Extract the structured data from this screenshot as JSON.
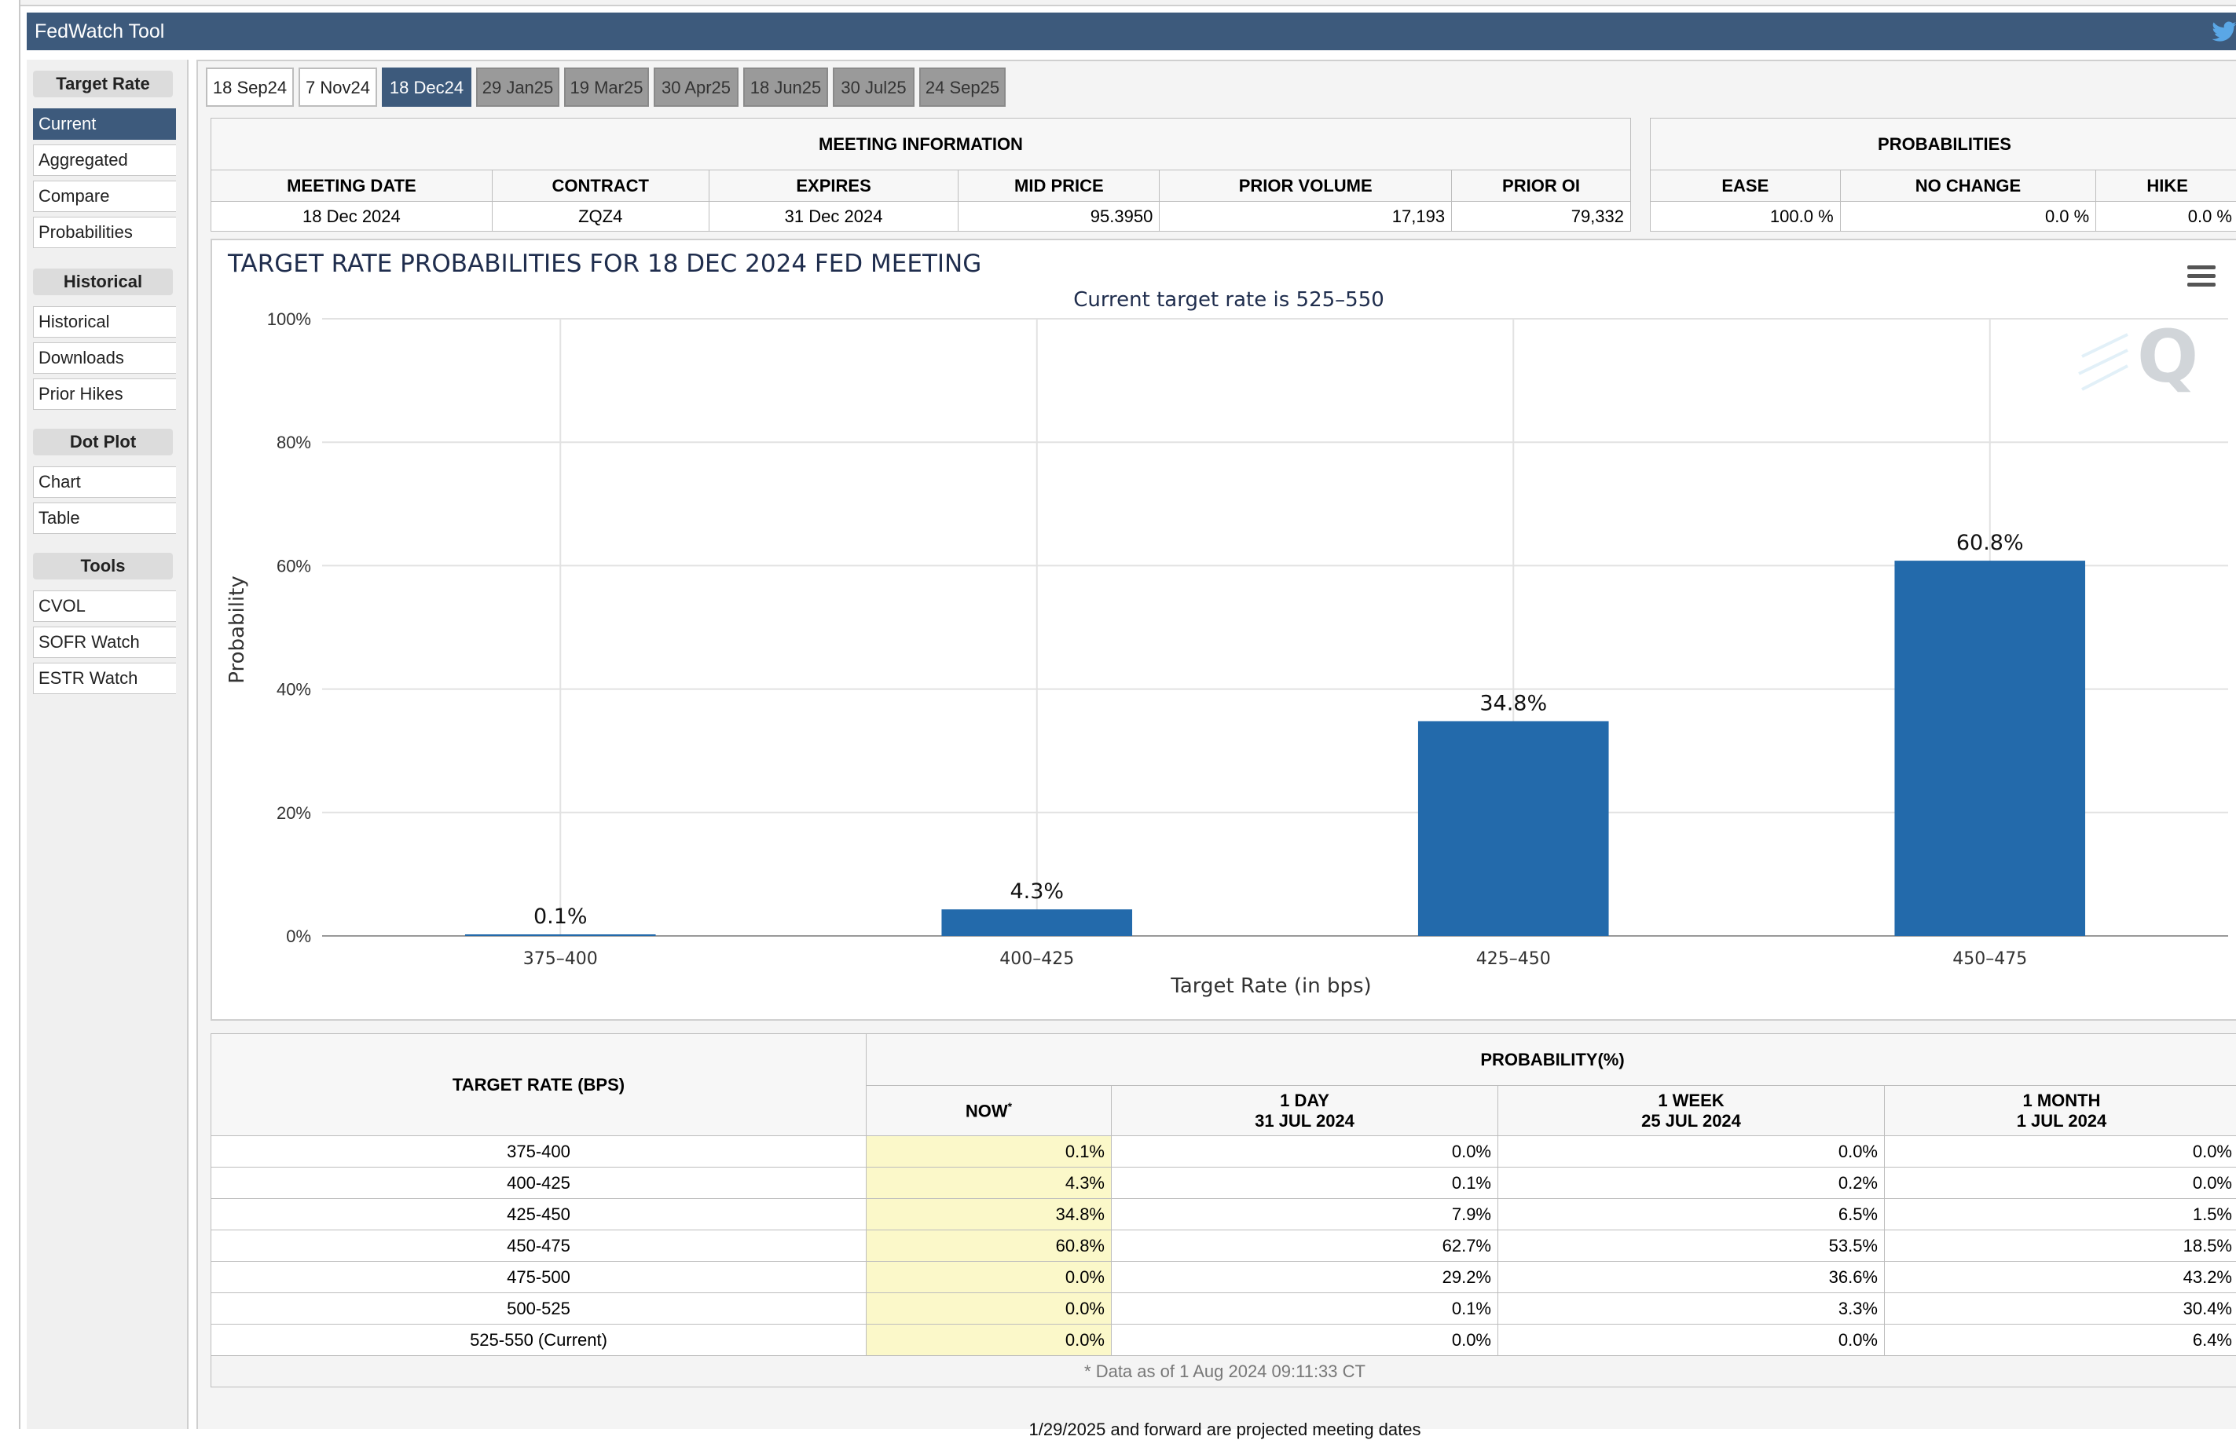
{
  "app": {
    "title": "FedWatch Tool"
  },
  "sidebar": {
    "sections": [
      {
        "heading": "Target Rate",
        "items": [
          "Current",
          "Aggregated",
          "Compare",
          "Probabilities"
        ]
      },
      {
        "heading": "Historical",
        "items": [
          "Historical",
          "Downloads",
          "Prior Hikes"
        ]
      },
      {
        "heading": "Dot Plot",
        "items": [
          "Chart",
          "Table"
        ]
      },
      {
        "heading": "Tools",
        "items": [
          "CVOL",
          "SOFR Watch",
          "ESTR Watch"
        ]
      }
    ],
    "active": "Current"
  },
  "tabs": [
    "18 Sep24",
    "7 Nov24",
    "18 Dec24",
    "29 Jan25",
    "19 Mar25",
    "30 Apr25",
    "18 Jun25",
    "30 Jul25",
    "24 Sep25"
  ],
  "active_tab": "18 Dec24",
  "meeting_info": {
    "title": "MEETING INFORMATION",
    "headers": [
      "MEETING DATE",
      "CONTRACT",
      "EXPIRES",
      "MID PRICE",
      "PRIOR VOLUME",
      "PRIOR OI"
    ],
    "values": [
      "18 Dec 2024",
      "ZQZ4",
      "31 Dec 2024",
      "95.3950",
      "17,193",
      "79,332"
    ]
  },
  "probabilities": {
    "title": "PROBABILITIES",
    "headers": [
      "EASE",
      "NO CHANGE",
      "HIKE"
    ],
    "values": [
      "100.0 %",
      "0.0 %",
      "0.0 %"
    ]
  },
  "chart_data": {
    "type": "bar",
    "title": "TARGET RATE PROBABILITIES FOR 18 DEC 2024 FED MEETING",
    "subtitle": "Current target rate is 525–550",
    "xlabel": "Target Rate (in bps)",
    "ylabel": "Probability",
    "categories": [
      "375–400",
      "400–425",
      "425–450",
      "450–475"
    ],
    "values": [
      0.1,
      4.3,
      34.8,
      60.8
    ],
    "data_labels": [
      "0.1%",
      "4.3%",
      "34.8%",
      "60.8%"
    ],
    "ylim": [
      0,
      100
    ],
    "y_ticks": [
      "0%",
      "20%",
      "40%",
      "60%",
      "80%",
      "100%"
    ],
    "grid": true,
    "bar_color": "#236aab"
  },
  "prob_table": {
    "col_target": "TARGET RATE (BPS)",
    "col_group": "PROBABILITY(%)",
    "col_now": "NOW",
    "now_marker": "*",
    "cols": [
      {
        "line1": "1 DAY",
        "line2": "31 JUL 2024"
      },
      {
        "line1": "1 WEEK",
        "line2": "25 JUL 2024"
      },
      {
        "line1": "1 MONTH",
        "line2": "1 JUL 2024"
      }
    ],
    "rows": [
      {
        "rate": "375-400",
        "now": "0.1%",
        "d1": "0.0%",
        "w1": "0.0%",
        "m1": "0.0%"
      },
      {
        "rate": "400-425",
        "now": "4.3%",
        "d1": "0.1%",
        "w1": "0.2%",
        "m1": "0.0%"
      },
      {
        "rate": "425-450",
        "now": "34.8%",
        "d1": "7.9%",
        "w1": "6.5%",
        "m1": "1.5%"
      },
      {
        "rate": "450-475",
        "now": "60.8%",
        "d1": "62.7%",
        "w1": "53.5%",
        "m1": "18.5%"
      },
      {
        "rate": "475-500",
        "now": "0.0%",
        "d1": "29.2%",
        "w1": "36.6%",
        "m1": "43.2%"
      },
      {
        "rate": "500-525",
        "now": "0.0%",
        "d1": "0.1%",
        "w1": "3.3%",
        "m1": "30.4%"
      },
      {
        "rate": "525-550 (Current)",
        "now": "0.0%",
        "d1": "0.0%",
        "w1": "0.0%",
        "m1": "6.4%"
      }
    ],
    "note": "* Data as of 1 Aug 2024 09:11:33 CT"
  },
  "footer": {
    "text": "1/29/2025 and forward are projected meeting dates"
  }
}
